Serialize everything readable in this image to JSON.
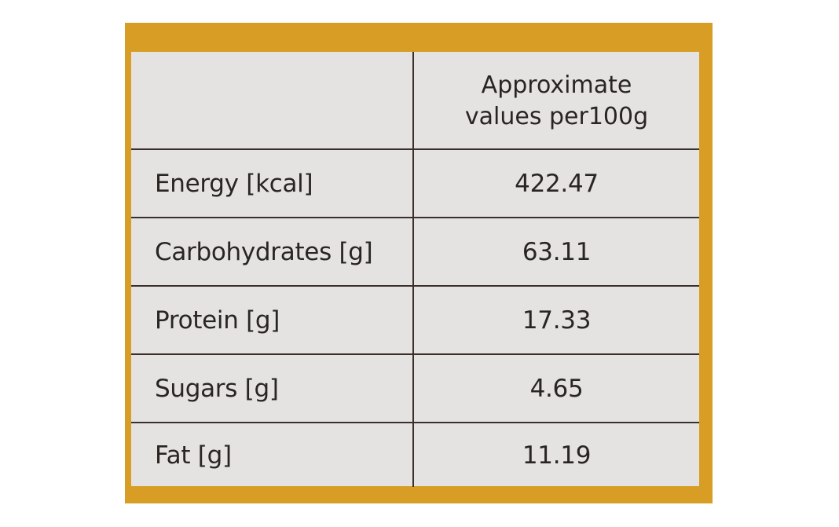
{
  "table": {
    "header": {
      "line1": "Approximate",
      "line2": "values per100g"
    },
    "rows": [
      {
        "label": "Energy [kcal]",
        "value": "422.47"
      },
      {
        "label": "Carbohydrates [g]",
        "value": "63.11"
      },
      {
        "label": "Protein [g]",
        "value": "17.33"
      },
      {
        "label": "Sugars [g]",
        "value": "4.65"
      },
      {
        "label": "Fat [g]",
        "value": "11.19"
      }
    ]
  },
  "colors": {
    "frame": "#d79d24",
    "panel": "#e4e3e1",
    "text": "#2a2522",
    "rule": "#3a2f2a"
  }
}
